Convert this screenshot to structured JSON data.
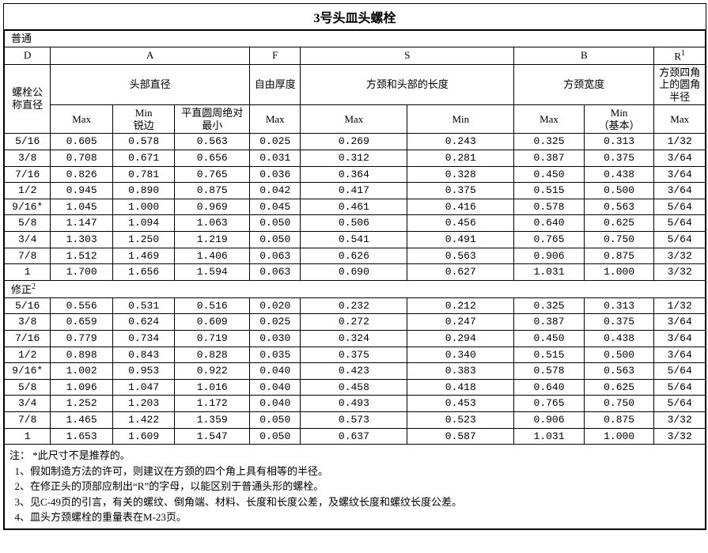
{
  "title": "3号头皿头螺栓",
  "section_normal_label": "普通",
  "section_corrected_label": "修正",
  "section_corrected_sup": "2",
  "header": {
    "D": "D",
    "A": "A",
    "F": "F",
    "S": "S",
    "B": "B",
    "R": "R",
    "R_sup": "1",
    "nominal_dia": "螺栓公称直径",
    "head_dia": "头部直径",
    "free_thickness": "自由厚度",
    "square_neck_len": "方颈和头部的长度",
    "square_neck_width": "方颈宽度",
    "corner_radius": "方颈四角上的圆角半径",
    "Max": "Max",
    "MinSharp": "Min\n锐边",
    "FlatAbsMin": "平直圆周绝对最小",
    "Min": "Min",
    "MinBasic": "Min\n（基本）"
  },
  "rows_normal": [
    {
      "d": "5/16",
      "a1": "0.605",
      "a2": "0.578",
      "a3": "0.563",
      "f": "0.025",
      "s1": "0.269",
      "s2": "0.243",
      "b1": "0.325",
      "b2": "0.313",
      "r": "1/32"
    },
    {
      "d": "3/8",
      "a1": "0.708",
      "a2": "0.671",
      "a3": "0.656",
      "f": "0.031",
      "s1": "0.312",
      "s2": "0.281",
      "b1": "0.387",
      "b2": "0.375",
      "r": "3/64"
    },
    {
      "d": "7/16",
      "a1": "0.826",
      "a2": "0.781",
      "a3": "0.765",
      "f": "0.036",
      "s1": "0.364",
      "s2": "0.328",
      "b1": "0.450",
      "b2": "0.438",
      "r": "3/64"
    },
    {
      "d": "1/2",
      "a1": "0.945",
      "a2": "0.890",
      "a3": "0.875",
      "f": "0.042",
      "s1": "0.417",
      "s2": "0.375",
      "b1": "0.515",
      "b2": "0.500",
      "r": "3/64"
    },
    {
      "d": "9/16*",
      "a1": "1.045",
      "a2": "1.000",
      "a3": "0.969",
      "f": "0.045",
      "s1": "0.461",
      "s2": "0.416",
      "b1": "0.578",
      "b2": "0.563",
      "r": "5/64"
    },
    {
      "d": "5/8",
      "a1": "1.147",
      "a2": "1.094",
      "a3": "1.063",
      "f": "0.050",
      "s1": "0.506",
      "s2": "0.456",
      "b1": "0.640",
      "b2": "0.625",
      "r": "5/64"
    },
    {
      "d": "3/4",
      "a1": "1.303",
      "a2": "1.250",
      "a3": "1.219",
      "f": "0.050",
      "s1": "0.541",
      "s2": "0.491",
      "b1": "0.765",
      "b2": "0.750",
      "r": "5/64"
    },
    {
      "d": "7/8",
      "a1": "1.512",
      "a2": "1.469",
      "a3": "1.406",
      "f": "0.063",
      "s1": "0.626",
      "s2": "0.563",
      "b1": "0.906",
      "b2": "0.875",
      "r": "3/32"
    },
    {
      "d": "1",
      "a1": "1.700",
      "a2": "1.656",
      "a3": "1.594",
      "f": "0.063",
      "s1": "0.690",
      "s2": "0.627",
      "b1": "1.031",
      "b2": "1.000",
      "r": "3/32"
    }
  ],
  "rows_corrected": [
    {
      "d": "5/16",
      "a1": "0.556",
      "a2": "0.531",
      "a3": "0.516",
      "f": "0.020",
      "s1": "0.232",
      "s2": "0.212",
      "b1": "0.325",
      "b2": "0.313",
      "r": "1/32"
    },
    {
      "d": "3/8",
      "a1": "0.659",
      "a2": "0.624",
      "a3": "0.609",
      "f": "0.025",
      "s1": "0.272",
      "s2": "0.247",
      "b1": "0.387",
      "b2": "0.375",
      "r": "3/64"
    },
    {
      "d": "7/16",
      "a1": "0.779",
      "a2": "0.734",
      "a3": "0.719",
      "f": "0.030",
      "s1": "0.324",
      "s2": "0.294",
      "b1": "0.450",
      "b2": "0.438",
      "r": "3/64"
    },
    {
      "d": "1/2",
      "a1": "0.898",
      "a2": "0.843",
      "a3": "0.828",
      "f": "0.035",
      "s1": "0.375",
      "s2": "0.340",
      "b1": "0.515",
      "b2": "0.500",
      "r": "3/64"
    },
    {
      "d": "9/16*",
      "a1": "1.002",
      "a2": "0.953",
      "a3": "0.922",
      "f": "0.040",
      "s1": "0.423",
      "s2": "0.383",
      "b1": "0.578",
      "b2": "0.563",
      "r": "5/64"
    },
    {
      "d": "5/8",
      "a1": "1.096",
      "a2": "1.047",
      "a3": "1.016",
      "f": "0.040",
      "s1": "0.458",
      "s2": "0.418",
      "b1": "0.640",
      "b2": "0.625",
      "r": "5/64"
    },
    {
      "d": "3/4",
      "a1": "1.252",
      "a2": "1.203",
      "a3": "1.172",
      "f": "0.040",
      "s1": "0.493",
      "s2": "0.453",
      "b1": "0.765",
      "b2": "0.750",
      "r": "5/64"
    },
    {
      "d": "7/8",
      "a1": "1.465",
      "a2": "1.422",
      "a3": "1.359",
      "f": "0.050",
      "s1": "0.573",
      "s2": "0.523",
      "b1": "0.906",
      "b2": "0.875",
      "r": "3/32"
    },
    {
      "d": "1",
      "a1": "1.653",
      "a2": "1.609",
      "a3": "1.547",
      "f": "0.050",
      "s1": "0.637",
      "s2": "0.587",
      "b1": "1.031",
      "b2": "1.000",
      "r": "3/32"
    }
  ],
  "notes": {
    "prefix": "注：",
    "star": " *此尺寸不是推荐的。",
    "n1": "1、假如制造方法的许可，则建议在方颈的四个角上具有相等的半径。",
    "n2": "2、在修正头的顶部应制出“R”的字母，以能区别于普通头形的螺栓。",
    "n3": "3、见C-49页的引言，有关的螺纹、倒角端、材料、长度和长度公差，及螺纹长度和螺纹长度公差。",
    "n4": "4、皿头方颈螺栓的重量表在M-23页。"
  },
  "col_widths": {
    "D": 58,
    "A1": 78,
    "A2": 78,
    "A3": 94,
    "F": 64,
    "S1": 134,
    "S2": 134,
    "B1": 88,
    "B2": 88,
    "R": 64
  }
}
